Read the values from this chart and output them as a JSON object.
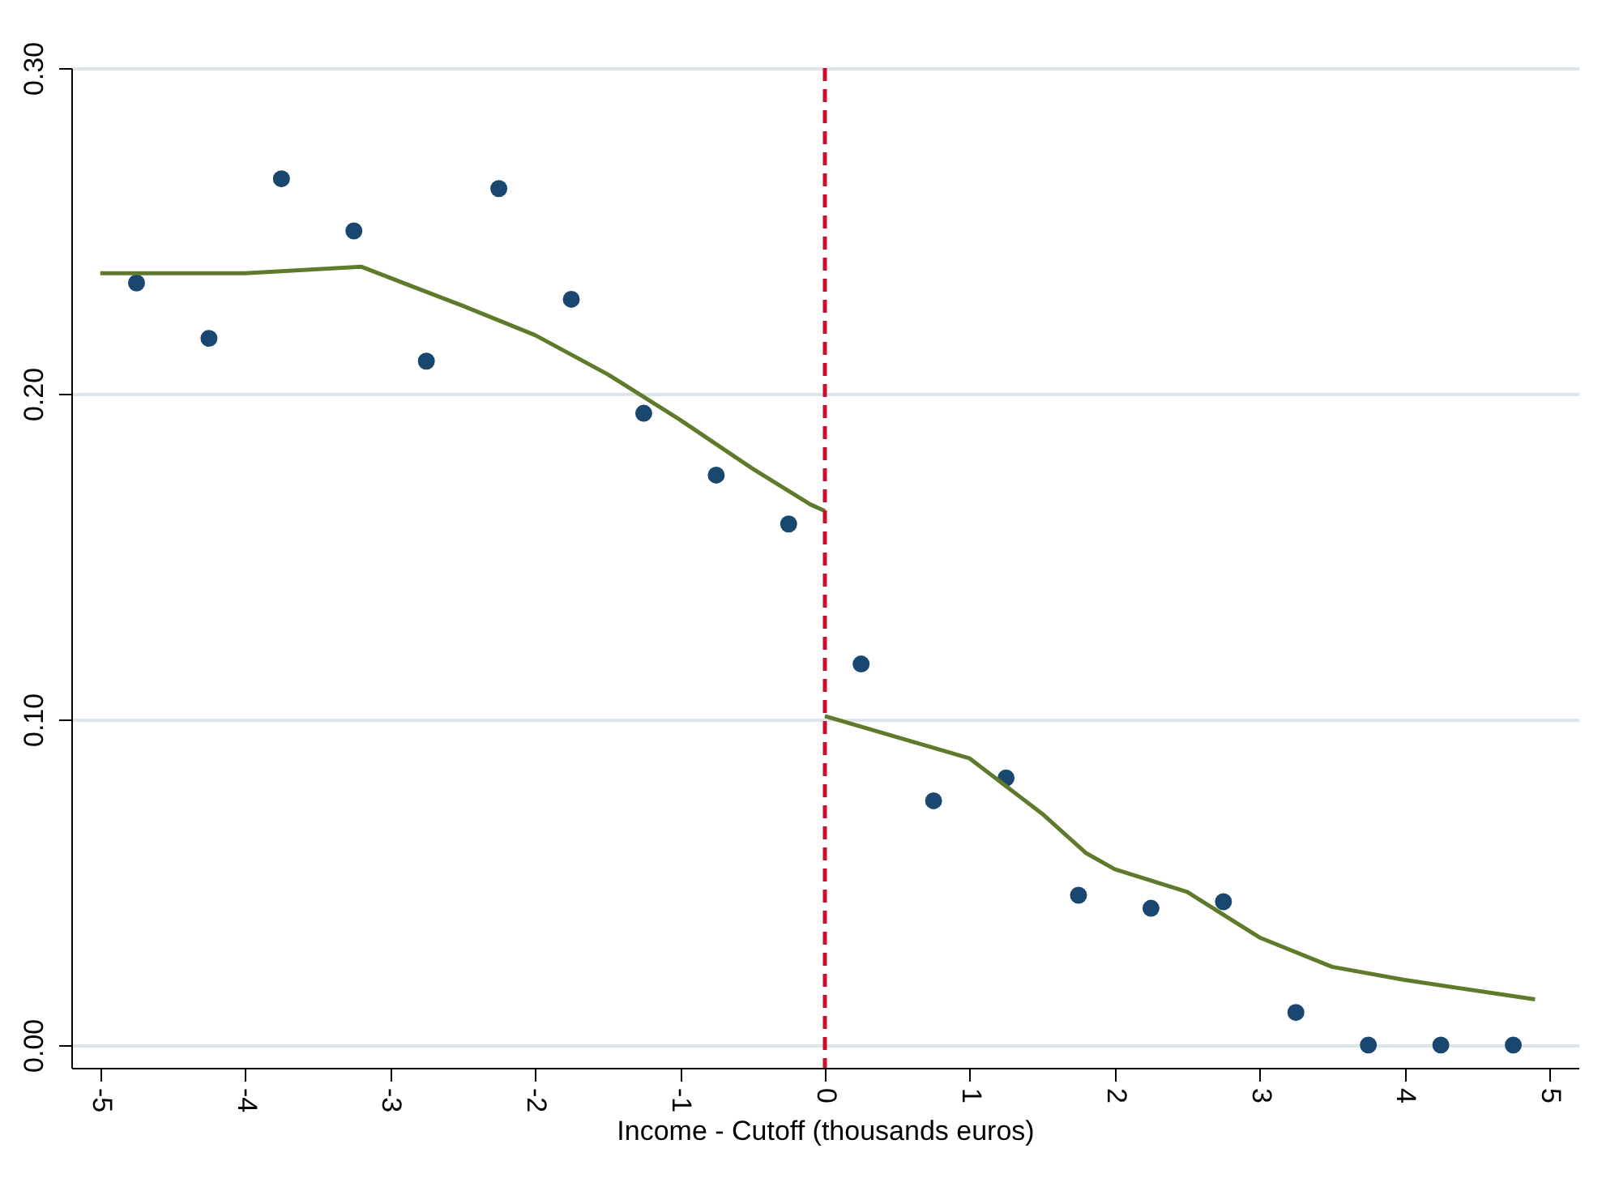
{
  "chart_data": {
    "type": "scatter",
    "xlabel": "Income - Cutoff (thousands euros)",
    "xlim": [
      -5.2,
      5.2
    ],
    "ylim": [
      -0.007,
      0.3
    ],
    "xticks": [
      -5,
      -4,
      -3,
      -2,
      -1,
      0,
      1,
      2,
      3,
      4,
      5
    ],
    "yticks": [
      {
        "value": 0,
        "label": "0.00"
      },
      {
        "value": 0.1,
        "label": "0.10"
      },
      {
        "value": 0.2,
        "label": "0.20"
      },
      {
        "value": 0.3,
        "label": "0.30"
      }
    ],
    "grid": "y",
    "legend": false,
    "marker": "circle",
    "series": [
      {
        "color": "#1a476f",
        "x": [
          -4.75,
          -4.25,
          -3.75,
          -3.25,
          -2.75,
          -2.25,
          -1.75,
          -1.25,
          -0.75,
          -0.25,
          0.25,
          0.75,
          1.25,
          1.75,
          2.25,
          2.75,
          3.25,
          3.75,
          4.25,
          4.75
        ],
        "values": [
          0.234,
          0.217,
          0.266,
          0.25,
          0.21,
          0.263,
          0.229,
          0.194,
          0.175,
          0.16,
          0.117,
          0.075,
          0.082,
          0.046,
          0.042,
          0.044,
          0.01,
          0,
          0,
          0
        ]
      },
      {
        "type": "line",
        "color": "#5f7a2a",
        "marker": "none",
        "x": [
          -5,
          -4,
          -3.2,
          -2.5,
          -2,
          -1.5,
          -1,
          -0.5,
          -0.1,
          0
        ],
        "values": [
          0.237,
          0.237,
          0.239,
          0.227,
          0.218,
          0.206,
          0.192,
          0.177,
          0.166,
          0.164
        ]
      },
      {
        "type": "line",
        "color": "#5f7a2a",
        "marker": "none",
        "x": [
          0,
          1,
          1.5,
          1.8,
          2,
          2.5,
          3,
          3.5,
          4,
          4.9
        ],
        "values": [
          0.101,
          0.088,
          0.071,
          0.059,
          0.054,
          0.047,
          0.033,
          0.024,
          0.02,
          0.014
        ]
      }
    ],
    "ref_lines": [
      {
        "axis": "x",
        "value": 0,
        "color": "#c8102e",
        "line_style": "dashed"
      }
    ]
  }
}
